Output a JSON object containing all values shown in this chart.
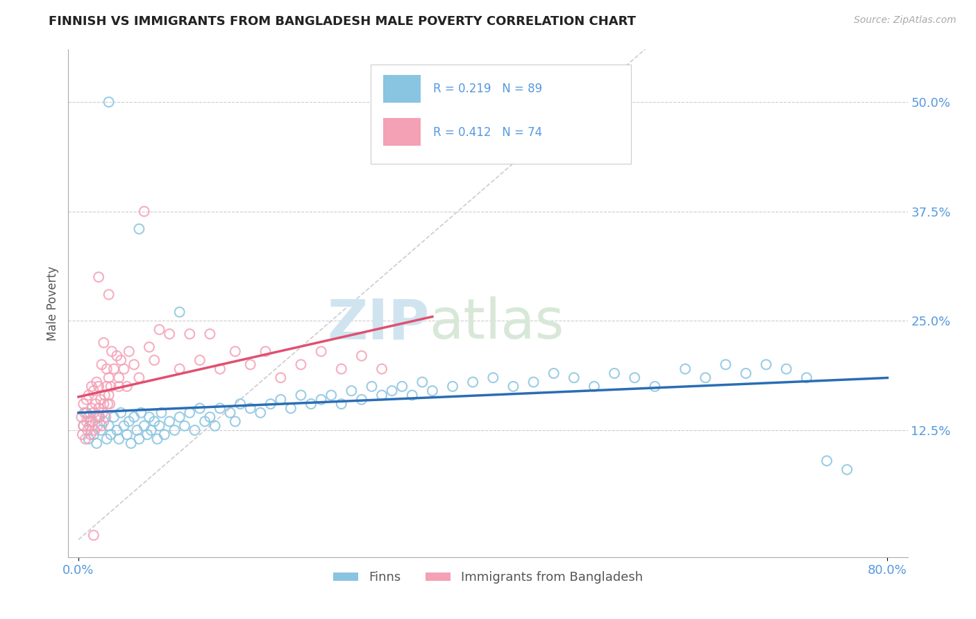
{
  "title": "FINNISH VS IMMIGRANTS FROM BANGLADESH MALE POVERTY CORRELATION CHART",
  "source_text": "Source: ZipAtlas.com",
  "ylabel": "Male Poverty",
  "xmin": 0.0,
  "xmax": 0.8,
  "ymin": -0.02,
  "ymax": 0.56,
  "ytick_vals": [
    0.125,
    0.25,
    0.375,
    0.5
  ],
  "ytick_labels": [
    "12.5%",
    "25.0%",
    "37.5%",
    "50.0%"
  ],
  "color_finns": "#89c4e1",
  "color_immigrants": "#f4a0b5",
  "color_line_finns": "#2a6db5",
  "color_line_immigrants": "#e05070",
  "color_diagonal": "#cccccc",
  "watermark_color": "#d8e8f0",
  "background_color": "#ffffff",
  "grid_color": "#cccccc",
  "title_color": "#222222",
  "axis_label_color": "#555555",
  "tick_color": "#5599dd",
  "legend_label_finns": "Finns",
  "legend_label_immigrants": "Immigrants from Bangladesh",
  "finns_x": [
    0.005,
    0.008,
    0.01,
    0.012,
    0.015,
    0.018,
    0.02,
    0.022,
    0.025,
    0.028,
    0.03,
    0.032,
    0.035,
    0.038,
    0.04,
    0.042,
    0.045,
    0.048,
    0.05,
    0.052,
    0.055,
    0.058,
    0.06,
    0.062,
    0.065,
    0.068,
    0.07,
    0.072,
    0.075,
    0.078,
    0.08,
    0.082,
    0.085,
    0.09,
    0.095,
    0.1,
    0.105,
    0.11,
    0.115,
    0.12,
    0.125,
    0.13,
    0.135,
    0.14,
    0.15,
    0.155,
    0.16,
    0.17,
    0.18,
    0.19,
    0.2,
    0.21,
    0.22,
    0.23,
    0.24,
    0.25,
    0.26,
    0.27,
    0.28,
    0.29,
    0.3,
    0.31,
    0.32,
    0.33,
    0.34,
    0.35,
    0.37,
    0.39,
    0.41,
    0.43,
    0.45,
    0.47,
    0.49,
    0.51,
    0.53,
    0.55,
    0.57,
    0.6,
    0.62,
    0.64,
    0.66,
    0.68,
    0.7,
    0.72,
    0.74,
    0.76,
    0.03,
    0.06,
    0.1
  ],
  "finns_y": [
    0.13,
    0.145,
    0.115,
    0.135,
    0.12,
    0.11,
    0.14,
    0.125,
    0.135,
    0.115,
    0.13,
    0.12,
    0.14,
    0.125,
    0.115,
    0.145,
    0.13,
    0.12,
    0.135,
    0.11,
    0.14,
    0.125,
    0.115,
    0.145,
    0.13,
    0.12,
    0.14,
    0.125,
    0.135,
    0.115,
    0.13,
    0.145,
    0.12,
    0.135,
    0.125,
    0.14,
    0.13,
    0.145,
    0.125,
    0.15,
    0.135,
    0.14,
    0.13,
    0.15,
    0.145,
    0.135,
    0.155,
    0.15,
    0.145,
    0.155,
    0.16,
    0.15,
    0.165,
    0.155,
    0.16,
    0.165,
    0.155,
    0.17,
    0.16,
    0.175,
    0.165,
    0.17,
    0.175,
    0.165,
    0.18,
    0.17,
    0.175,
    0.18,
    0.185,
    0.175,
    0.18,
    0.19,
    0.185,
    0.175,
    0.19,
    0.185,
    0.175,
    0.195,
    0.185,
    0.2,
    0.19,
    0.2,
    0.195,
    0.185,
    0.09,
    0.08,
    0.5,
    0.355,
    0.26
  ],
  "immigrants_x": [
    0.003,
    0.004,
    0.005,
    0.005,
    0.006,
    0.007,
    0.008,
    0.008,
    0.009,
    0.01,
    0.01,
    0.011,
    0.012,
    0.013,
    0.013,
    0.014,
    0.015,
    0.015,
    0.016,
    0.017,
    0.018,
    0.018,
    0.019,
    0.02,
    0.02,
    0.021,
    0.022,
    0.023,
    0.023,
    0.024,
    0.025,
    0.025,
    0.026,
    0.027,
    0.028,
    0.028,
    0.029,
    0.03,
    0.03,
    0.031,
    0.032,
    0.033,
    0.035,
    0.038,
    0.04,
    0.042,
    0.045,
    0.048,
    0.05,
    0.055,
    0.06,
    0.065,
    0.07,
    0.075,
    0.08,
    0.09,
    0.1,
    0.11,
    0.12,
    0.13,
    0.14,
    0.155,
    0.17,
    0.185,
    0.2,
    0.22,
    0.24,
    0.26,
    0.28,
    0.3,
    0.02,
    0.03,
    0.04,
    0.015
  ],
  "immigrants_y": [
    0.14,
    0.12,
    0.13,
    0.155,
    0.145,
    0.115,
    0.135,
    0.16,
    0.125,
    0.14,
    0.165,
    0.13,
    0.12,
    0.15,
    0.175,
    0.135,
    0.145,
    0.17,
    0.125,
    0.155,
    0.14,
    0.18,
    0.13,
    0.15,
    0.175,
    0.14,
    0.16,
    0.13,
    0.2,
    0.145,
    0.155,
    0.225,
    0.165,
    0.14,
    0.175,
    0.195,
    0.155,
    0.165,
    0.185,
    0.155,
    0.175,
    0.215,
    0.195,
    0.21,
    0.185,
    0.205,
    0.195,
    0.175,
    0.215,
    0.2,
    0.185,
    0.375,
    0.22,
    0.205,
    0.24,
    0.235,
    0.195,
    0.235,
    0.205,
    0.235,
    0.195,
    0.215,
    0.2,
    0.215,
    0.185,
    0.2,
    0.215,
    0.195,
    0.21,
    0.195,
    0.3,
    0.28,
    0.175,
    0.005
  ]
}
